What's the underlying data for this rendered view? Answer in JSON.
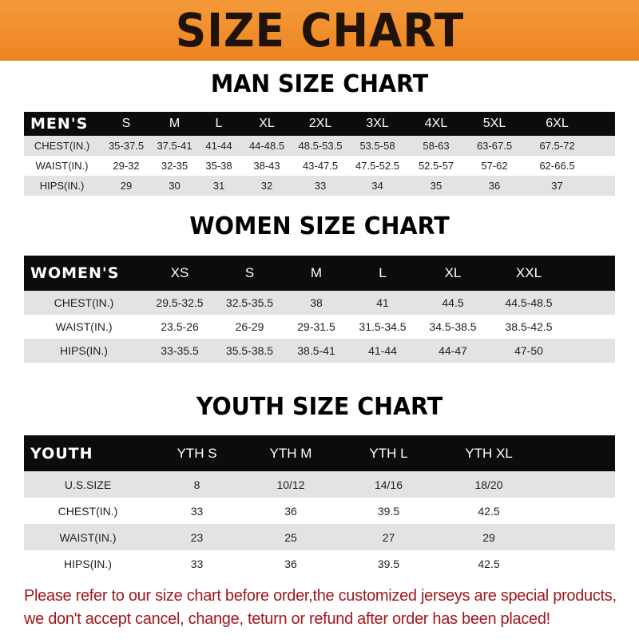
{
  "banner_title": "SIZE CHART",
  "tables": [
    {
      "id": "men",
      "title": "MAN SIZE CHART",
      "header": [
        "MEN'S",
        "S",
        "M",
        "L",
        "XL",
        "2XL",
        "3XL",
        "4XL",
        "5XL",
        "6XL"
      ],
      "rows": [
        [
          "CHEST(IN.)",
          "35-37.5",
          "37.5-41",
          "41-44",
          "44-48.5",
          "48.5-53.5",
          "53.5-58",
          "58-63",
          "63-67.5",
          "67.5-72"
        ],
        [
          "WAIST(IN.)",
          "29-32",
          "32-35",
          "35-38",
          "38-43",
          "43-47.5",
          "47.5-52.5",
          "52.5-57",
          "57-62",
          "62-66.5"
        ],
        [
          "HIPS(IN.)",
          "29",
          "30",
          "31",
          "32",
          "33",
          "34",
          "35",
          "36",
          "37"
        ]
      ]
    },
    {
      "id": "women",
      "title": "WOMEN SIZE CHART",
      "header": [
        "WOMEN'S",
        "XS",
        "S",
        "M",
        "L",
        "XL",
        "XXL"
      ],
      "rows": [
        [
          "CHEST(IN.)",
          "29.5-32.5",
          "32.5-35.5",
          "38",
          "41",
          "44.5",
          "44.5-48.5"
        ],
        [
          "WAIST(IN.)",
          "23.5-26",
          "26-29",
          "29-31.5",
          "31.5-34.5",
          "34.5-38.5",
          "38.5-42.5"
        ],
        [
          "HIPS(IN.)",
          "33-35.5",
          "35.5-38.5",
          "38.5-41",
          "41-44",
          "44-47",
          "47-50"
        ]
      ]
    },
    {
      "id": "youth",
      "title": "YOUTH SIZE CHART",
      "header": [
        "YOUTH",
        "YTH S",
        "YTH M",
        "YTH L",
        "YTH XL"
      ],
      "rows": [
        [
          "U.S.SIZE",
          "8",
          "10/12",
          "14/16",
          "18/20"
        ],
        [
          "CHEST(IN.)",
          "33",
          "36",
          "39.5",
          "42.5"
        ],
        [
          "WAIST(IN.)",
          "23",
          "25",
          "27",
          "29"
        ],
        [
          "HIPS(IN.)",
          "33",
          "36",
          "39.5",
          "42.5"
        ]
      ]
    }
  ],
  "note_lines": [
    "Please refer to our size chart before order,the customized jerseys are special products,",
    "we don't accept cancel, change, teturn or refund after order has been placed!"
  ],
  "colors": {
    "banner": "#ec8420",
    "header_row": "#0c0c0c",
    "stripe": "#e3e3e3",
    "note": "#a3171c"
  }
}
